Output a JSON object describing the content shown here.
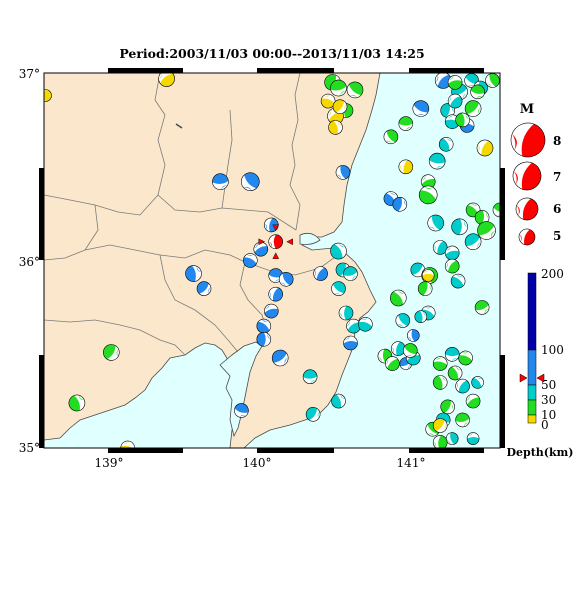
{
  "title": "Period:2003/11/03 00:00--2013/11/03 14:25",
  "lat_labels": [
    "37°",
    "36°",
    "35°"
  ],
  "lon_labels": [
    "139°",
    "140°",
    "141°"
  ],
  "magnitude_legend": {
    "title": "M",
    "items": [
      {
        "label": "8",
        "mag": 8
      },
      {
        "label": "7",
        "mag": 7
      },
      {
        "label": "6",
        "mag": 6
      },
      {
        "label": "5",
        "mag": 5
      }
    ]
  },
  "depth_legend": {
    "label": "Depth(km)",
    "ticks": [
      {
        "label": "200",
        "value": 200
      },
      {
        "label": "100",
        "value": 100
      },
      {
        "label": "50",
        "value": 50
      },
      {
        "label": "30",
        "value": 30
      },
      {
        "label": "10",
        "value": 10
      },
      {
        "label": "0",
        "value": 0
      }
    ],
    "marker_value": 55,
    "colors": {
      "0-10": "#f5d800",
      "10-30": "#22dd22",
      "30-100": "#00cccc",
      "100-200": "#2288ee",
      "200+": "#0000aa"
    }
  },
  "colors": {
    "land": "#fbe8cc",
    "sea": "#e0ffff",
    "border": "#7a7a7a",
    "coast": "#4a4a4a",
    "highlight": "#ff0000"
  },
  "highlight_event": {
    "lon": 140.1,
    "lat": 36.1,
    "depth_class": "red"
  },
  "events": [
    {
      "lon": 138.56,
      "lat": 36.88,
      "c": "y",
      "r": 6
    },
    {
      "lon": 139.37,
      "lat": 36.97,
      "c": "y",
      "r": 8
    },
    {
      "lon": 139.11,
      "lat": 35.0,
      "c": "y",
      "r": 7
    },
    {
      "lon": 138.77,
      "lat": 35.24,
      "c": "g",
      "r": 8
    },
    {
      "lon": 139.0,
      "lat": 35.51,
      "c": "g",
      "r": 8
    },
    {
      "lon": 139.73,
      "lat": 36.42,
      "c": "b",
      "r": 8
    },
    {
      "lon": 139.93,
      "lat": 36.42,
      "c": "b",
      "r": 9
    },
    {
      "lon": 140.07,
      "lat": 36.19,
      "c": "b",
      "r": 7
    },
    {
      "lon": 140.0,
      "lat": 36.06,
      "c": "b",
      "r": 7
    },
    {
      "lon": 139.93,
      "lat": 36.0,
      "c": "b",
      "r": 7
    },
    {
      "lon": 139.55,
      "lat": 35.93,
      "c": "b",
      "r": 8
    },
    {
      "lon": 139.62,
      "lat": 35.85,
      "c": "b",
      "r": 7
    },
    {
      "lon": 140.1,
      "lat": 35.92,
      "c": "b",
      "r": 7
    },
    {
      "lon": 140.17,
      "lat": 35.9,
      "c": "b",
      "r": 7
    },
    {
      "lon": 140.1,
      "lat": 35.82,
      "c": "b",
      "r": 7
    },
    {
      "lon": 140.07,
      "lat": 35.73,
      "c": "b",
      "r": 7
    },
    {
      "lon": 140.02,
      "lat": 35.65,
      "c": "b",
      "r": 7
    },
    {
      "lon": 140.02,
      "lat": 35.58,
      "c": "b",
      "r": 7
    },
    {
      "lon": 140.13,
      "lat": 35.48,
      "c": "b",
      "r": 8
    },
    {
      "lon": 139.87,
      "lat": 35.2,
      "c": "b",
      "r": 7
    },
    {
      "lon": 140.55,
      "lat": 36.47,
      "c": "b",
      "r": 7
    },
    {
      "lon": 140.4,
      "lat": 35.93,
      "c": "b",
      "r": 7
    },
    {
      "lon": 140.6,
      "lat": 35.56,
      "c": "b",
      "r": 7
    },
    {
      "lon": 140.87,
      "lat": 36.33,
      "c": "b",
      "r": 7
    },
    {
      "lon": 140.93,
      "lat": 36.3,
      "c": "b",
      "r": 7
    },
    {
      "lon": 140.97,
      "lat": 35.45,
      "c": "b",
      "r": 6
    },
    {
      "lon": 141.07,
      "lat": 36.81,
      "c": "b",
      "r": 8
    },
    {
      "lon": 141.02,
      "lat": 35.6,
      "c": "b",
      "r": 6
    },
    {
      "lon": 141.22,
      "lat": 36.96,
      "c": "b",
      "r": 8
    },
    {
      "lon": 141.38,
      "lat": 36.72,
      "c": "b",
      "r": 7
    },
    {
      "lon": 140.52,
      "lat": 36.05,
      "c": "c",
      "r": 8
    },
    {
      "lon": 140.55,
      "lat": 35.95,
      "c": "c",
      "r": 7
    },
    {
      "lon": 140.6,
      "lat": 35.93,
      "c": "c",
      "r": 7
    },
    {
      "lon": 140.52,
      "lat": 35.85,
      "c": "c",
      "r": 7
    },
    {
      "lon": 140.57,
      "lat": 35.72,
      "c": "c",
      "r": 7
    },
    {
      "lon": 140.62,
      "lat": 35.65,
      "c": "c",
      "r": 7
    },
    {
      "lon": 140.7,
      "lat": 35.66,
      "c": "c",
      "r": 7
    },
    {
      "lon": 140.52,
      "lat": 35.25,
      "c": "c",
      "r": 7
    },
    {
      "lon": 140.35,
      "lat": 35.18,
      "c": "c",
      "r": 7
    },
    {
      "lon": 140.33,
      "lat": 35.38,
      "c": "c",
      "r": 7
    },
    {
      "lon": 140.95,
      "lat": 35.68,
      "c": "c",
      "r": 7
    },
    {
      "lon": 140.92,
      "lat": 35.53,
      "c": "c",
      "r": 7
    },
    {
      "lon": 141.02,
      "lat": 35.48,
      "c": "c",
      "r": 7
    },
    {
      "lon": 141.12,
      "lat": 35.72,
      "c": "c",
      "r": 7
    },
    {
      "lon": 141.07,
      "lat": 35.7,
      "c": "c",
      "r": 6
    },
    {
      "lon": 141.05,
      "lat": 35.95,
      "c": "c",
      "r": 7
    },
    {
      "lon": 141.18,
      "lat": 36.53,
      "c": "c",
      "r": 8
    },
    {
      "lon": 141.17,
      "lat": 36.2,
      "c": "c",
      "r": 8
    },
    {
      "lon": 141.2,
      "lat": 36.07,
      "c": "c",
      "r": 7
    },
    {
      "lon": 141.28,
      "lat": 36.04,
      "c": "c",
      "r": 7
    },
    {
      "lon": 141.32,
      "lat": 35.89,
      "c": "c",
      "r": 7
    },
    {
      "lon": 141.33,
      "lat": 36.18,
      "c": "c",
      "r": 8
    },
    {
      "lon": 141.42,
      "lat": 36.1,
      "c": "c",
      "r": 8
    },
    {
      "lon": 141.22,
      "lat": 35.15,
      "c": "c",
      "r": 7
    },
    {
      "lon": 141.28,
      "lat": 35.05,
      "c": "c",
      "r": 6
    },
    {
      "lon": 141.35,
      "lat": 35.33,
      "c": "c",
      "r": 7
    },
    {
      "lon": 141.42,
      "lat": 35.05,
      "c": "c",
      "r": 6
    },
    {
      "lon": 141.45,
      "lat": 35.35,
      "c": "c",
      "r": 6
    },
    {
      "lon": 141.25,
      "lat": 36.8,
      "c": "c",
      "r": 7
    },
    {
      "lon": 141.33,
      "lat": 36.9,
      "c": "c",
      "r": 8
    },
    {
      "lon": 141.41,
      "lat": 36.96,
      "c": "c",
      "r": 7
    },
    {
      "lon": 141.47,
      "lat": 36.92,
      "c": "c",
      "r": 7
    },
    {
      "lon": 141.3,
      "lat": 36.85,
      "c": "c",
      "r": 7
    },
    {
      "lon": 141.28,
      "lat": 36.74,
      "c": "c",
      "r": 7
    },
    {
      "lon": 141.24,
      "lat": 36.62,
      "c": "c",
      "r": 7
    },
    {
      "lon": 140.48,
      "lat": 36.95,
      "c": "g",
      "r": 8
    },
    {
      "lon": 140.52,
      "lat": 36.92,
      "c": "g",
      "r": 8
    },
    {
      "lon": 140.63,
      "lat": 36.91,
      "c": "g",
      "r": 8
    },
    {
      "lon": 140.57,
      "lat": 36.8,
      "c": "g",
      "r": 7
    },
    {
      "lon": 140.5,
      "lat": 36.77,
      "c": "y",
      "r": 8
    },
    {
      "lon": 140.45,
      "lat": 36.85,
      "c": "y",
      "r": 7
    },
    {
      "lon": 140.5,
      "lat": 36.71,
      "c": "y",
      "r": 7
    },
    {
      "lon": 140.53,
      "lat": 36.82,
      "c": "y",
      "r": 7
    },
    {
      "lon": 140.97,
      "lat": 36.73,
      "c": "g",
      "r": 7
    },
    {
      "lon": 140.87,
      "lat": 36.66,
      "c": "g",
      "r": 7
    },
    {
      "lon": 140.97,
      "lat": 36.5,
      "c": "y",
      "r": 7
    },
    {
      "lon": 141.12,
      "lat": 36.42,
      "c": "g",
      "r": 7
    },
    {
      "lon": 141.12,
      "lat": 36.35,
      "c": "g",
      "r": 9
    },
    {
      "lon": 141.35,
      "lat": 36.75,
      "c": "g",
      "r": 7
    },
    {
      "lon": 141.42,
      "lat": 36.81,
      "c": "g",
      "r": 8
    },
    {
      "lon": 141.45,
      "lat": 36.9,
      "c": "g",
      "r": 7
    },
    {
      "lon": 141.55,
      "lat": 36.96,
      "c": "g",
      "r": 7
    },
    {
      "lon": 141.5,
      "lat": 36.6,
      "c": "y",
      "r": 8
    },
    {
      "lon": 141.3,
      "lat": 36.95,
      "c": "g",
      "r": 7
    },
    {
      "lon": 141.42,
      "lat": 36.27,
      "c": "g",
      "r": 7
    },
    {
      "lon": 141.48,
      "lat": 36.23,
      "c": "g",
      "r": 7
    },
    {
      "lon": 141.51,
      "lat": 36.16,
      "c": "g",
      "r": 9
    },
    {
      "lon": 141.6,
      "lat": 36.27,
      "c": "g",
      "r": 7
    },
    {
      "lon": 141.13,
      "lat": 35.92,
      "c": "g",
      "r": 8
    },
    {
      "lon": 141.28,
      "lat": 35.97,
      "c": "g",
      "r": 7
    },
    {
      "lon": 141.12,
      "lat": 35.92,
      "c": "y",
      "r": 6
    },
    {
      "lon": 140.92,
      "lat": 35.8,
      "c": "g",
      "r": 8
    },
    {
      "lon": 141.1,
      "lat": 35.85,
      "c": "g",
      "r": 7
    },
    {
      "lon": 141.48,
      "lat": 35.75,
      "c": "g",
      "r": 7
    },
    {
      "lon": 141.0,
      "lat": 35.52,
      "c": "g",
      "r": 7
    },
    {
      "lon": 140.83,
      "lat": 35.49,
      "c": "g",
      "r": 7
    },
    {
      "lon": 140.88,
      "lat": 35.45,
      "c": "g",
      "r": 7
    },
    {
      "lon": 141.2,
      "lat": 35.45,
      "c": "g",
      "r": 7
    },
    {
      "lon": 141.3,
      "lat": 35.4,
      "c": "g",
      "r": 7
    },
    {
      "lon": 141.25,
      "lat": 35.22,
      "c": "g",
      "r": 7
    },
    {
      "lon": 141.35,
      "lat": 35.15,
      "c": "g",
      "r": 7
    },
    {
      "lon": 141.15,
      "lat": 35.1,
      "c": "g",
      "r": 7
    },
    {
      "lon": 141.2,
      "lat": 35.03,
      "c": "g",
      "r": 7
    },
    {
      "lon": 141.42,
      "lat": 35.25,
      "c": "g",
      "r": 7
    },
    {
      "lon": 141.37,
      "lat": 35.48,
      "c": "g",
      "r": 7
    },
    {
      "lon": 141.2,
      "lat": 35.35,
      "c": "g",
      "r": 7
    },
    {
      "lon": 141.2,
      "lat": 35.12,
      "c": "y",
      "r": 7
    },
    {
      "lon": 141.28,
      "lat": 35.5,
      "c": "c",
      "r": 7
    }
  ]
}
